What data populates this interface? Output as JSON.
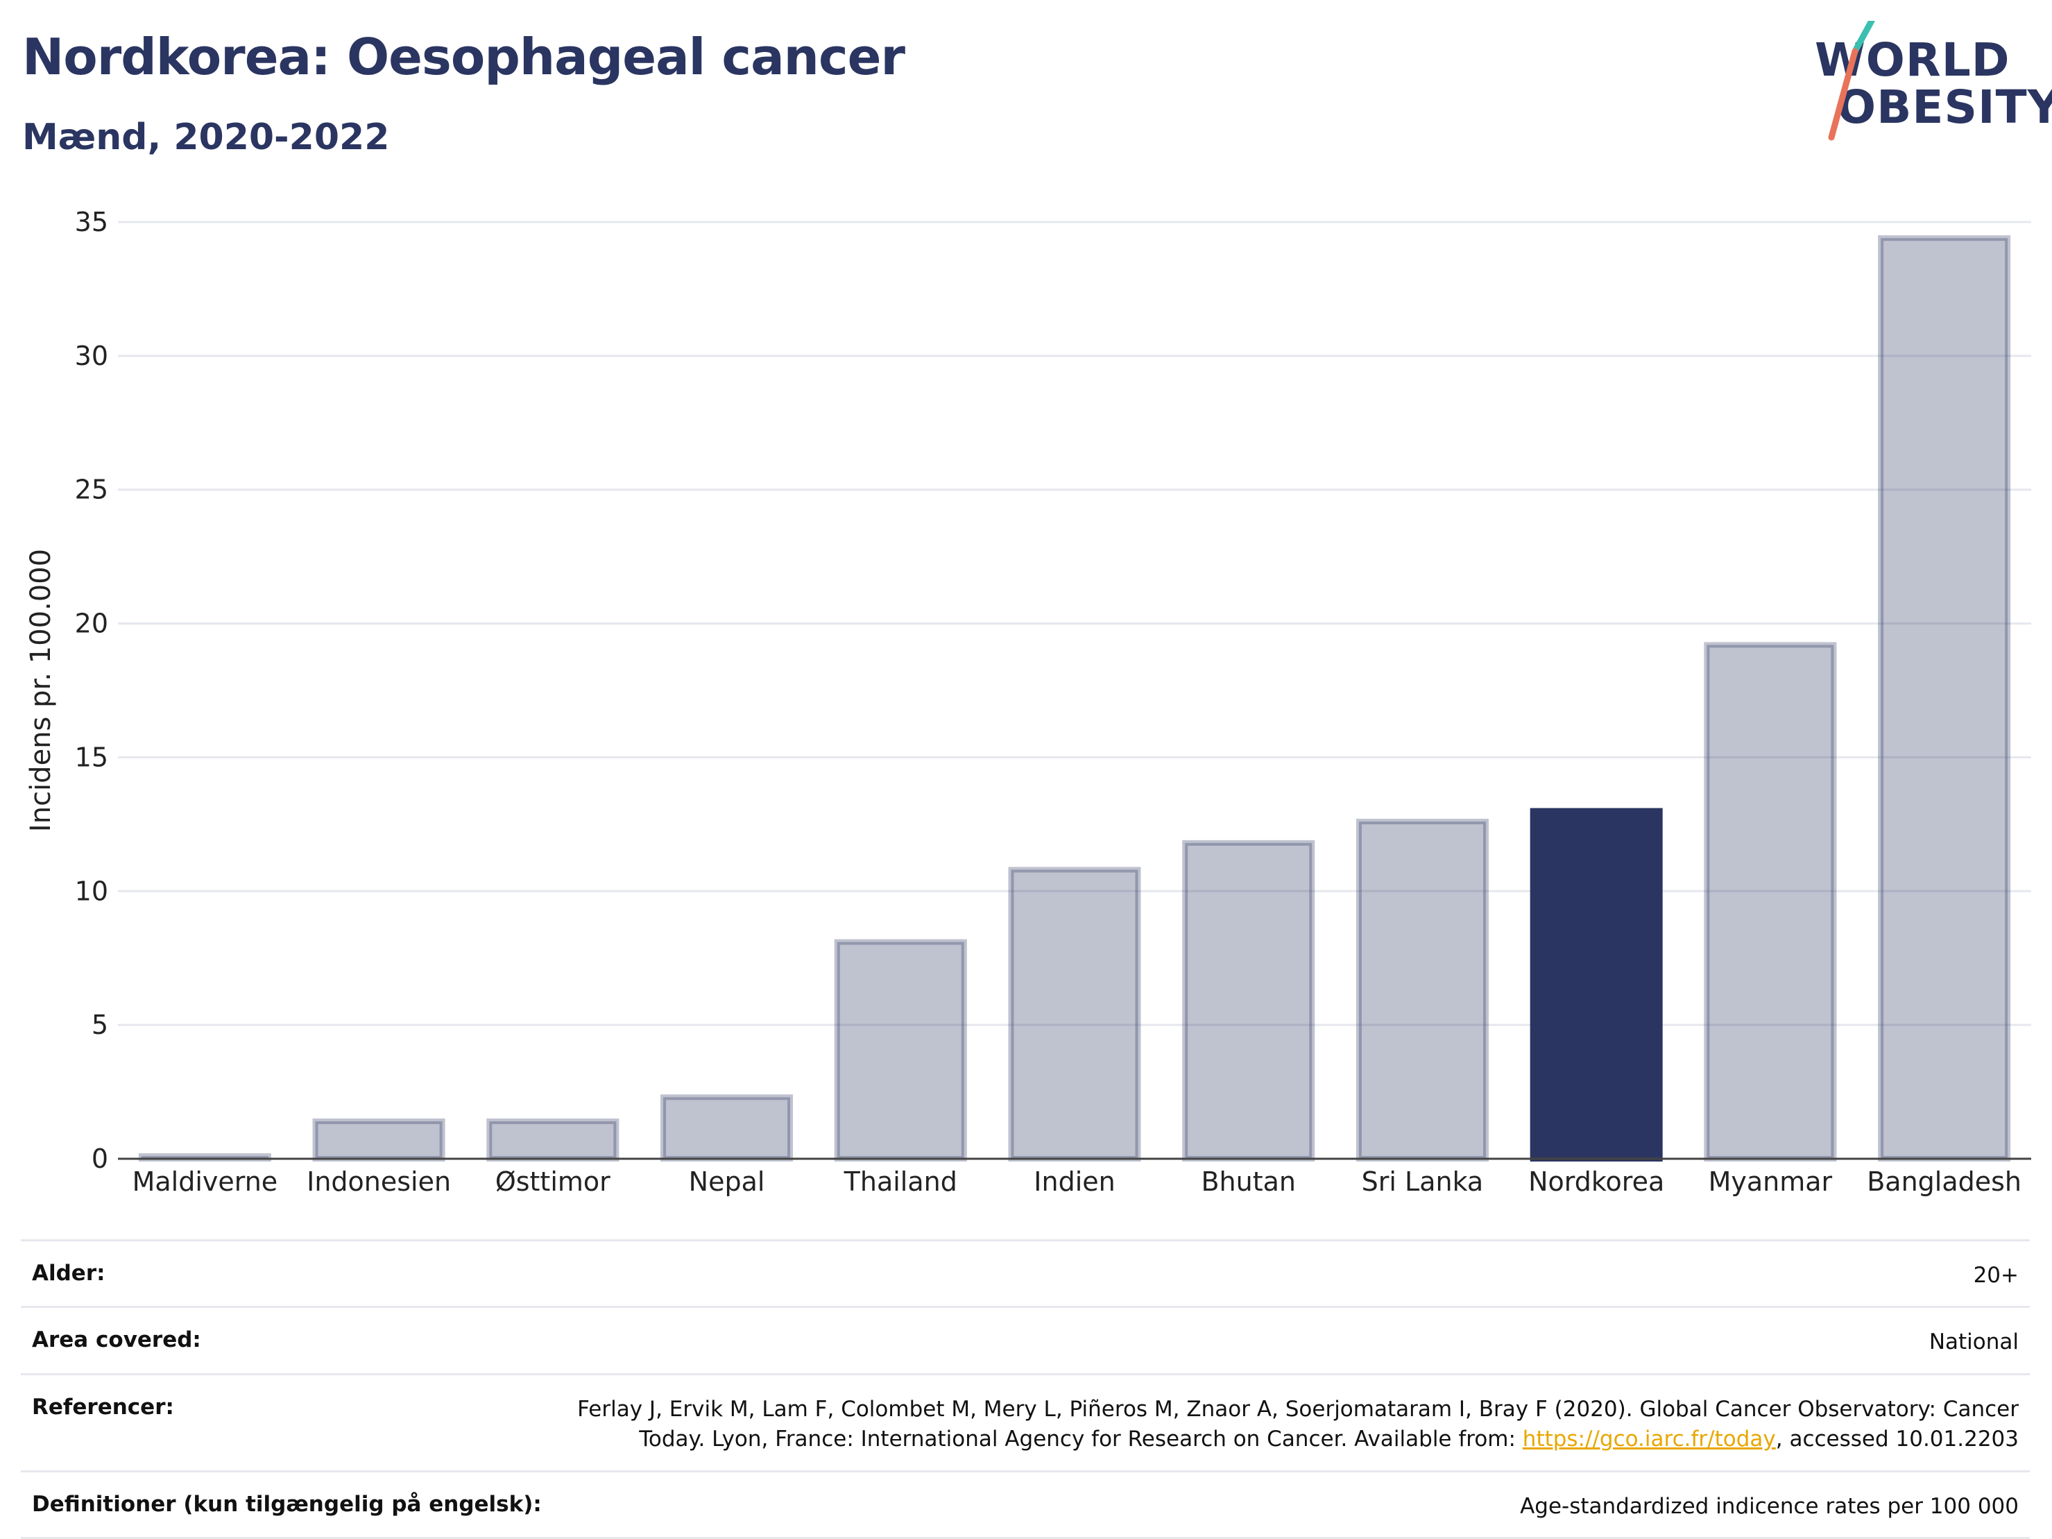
{
  "header": {
    "title": "Nordkorea: Oesophageal cancer",
    "subtitle": "Mænd, 2020-2022"
  },
  "logo": {
    "line1": "WORLD",
    "line2": "OBESITY",
    "text_color": "#2b3561",
    "slash_colors": [
      "#3bbfb0",
      "#e8735a"
    ]
  },
  "chart_data": {
    "type": "bar",
    "categories": [
      "Maldiverne",
      "Indonesien",
      "Østtimor",
      "Nepal",
      "Thailand",
      "Indien",
      "Bhutan",
      "Sri Lanka",
      "Nordkorea",
      "Myanmar",
      "Bangladesh"
    ],
    "values": [
      0.1,
      1.4,
      1.4,
      2.3,
      8.1,
      10.8,
      11.8,
      12.6,
      13.0,
      19.2,
      34.4
    ],
    "highlight": "Nordkorea",
    "ylabel": "Incidens pr. 100.000",
    "xlabel": "",
    "ylim": [
      0,
      35
    ],
    "yticks": [
      0,
      5,
      10,
      15,
      20,
      25,
      30,
      35
    ],
    "grid": true,
    "colors": {
      "bar": "#2b3561",
      "highlight": "#2b3561",
      "grid": "#e6e8ee"
    }
  },
  "meta": {
    "age_label": "Alder:",
    "age_value": "20+",
    "area_label": "Area covered:",
    "area_value": "National",
    "ref_label": "Referencer:",
    "ref_text_1": "Ferlay J, Ervik M, Lam F, Colombet M, Mery L, Piñeros M, Znaor A, Soerjomataram I, Bray F (2020). Global Cancer Observatory: Cancer Today. Lyon, France: International Agency for Research on Cancer. Available from: ",
    "ref_link": "https://gco.iarc.fr/today",
    "ref_text_2": ", accessed 10.01.2203",
    "def_label": "Definitioner (kun tilgængelig på engelsk):",
    "def_value": "Age-standardized indicence rates per 100 000"
  }
}
